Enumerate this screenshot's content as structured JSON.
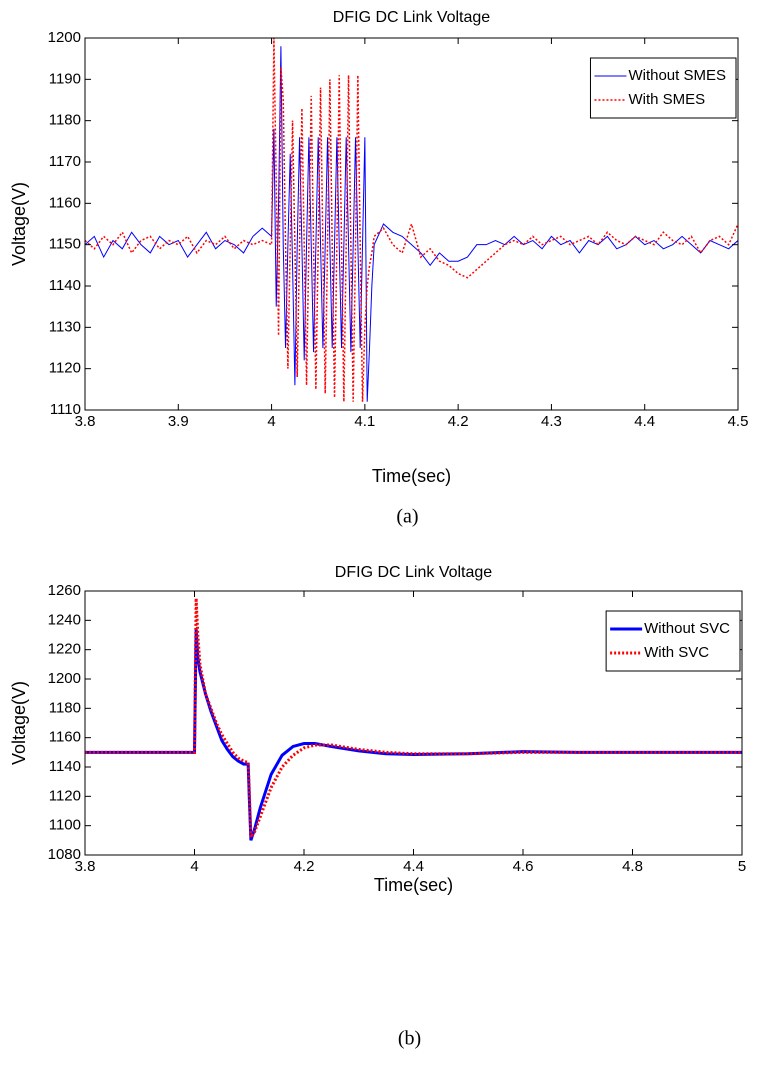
{
  "chart_data": [
    {
      "type": "line",
      "title": "DFIG DC Link Voltage",
      "xlabel": "Time(sec)",
      "ylabel": "Voltage(V)",
      "caption": "(a)",
      "xlim": [
        3.8,
        4.5
      ],
      "ylim": [
        1110,
        1200
      ],
      "xticks": [
        3.8,
        3.9,
        4,
        4.1,
        4.2,
        4.3,
        4.4,
        4.5
      ],
      "yticks": [
        1110,
        1120,
        1130,
        1140,
        1150,
        1160,
        1170,
        1180,
        1190,
        1200
      ],
      "legend": "upper right",
      "grid": false,
      "x": [
        3.8,
        3.81,
        3.82,
        3.83,
        3.84,
        3.85,
        3.86,
        3.87,
        3.88,
        3.89,
        3.9,
        3.91,
        3.92,
        3.93,
        3.94,
        3.95,
        3.96,
        3.97,
        3.98,
        3.99,
        4.0,
        4.0025,
        4.005,
        4.0075,
        4.01,
        4.0125,
        4.015,
        4.0175,
        4.02,
        4.0225,
        4.025,
        4.0275,
        4.03,
        4.0325,
        4.035,
        4.0375,
        4.04,
        4.0425,
        4.045,
        4.0475,
        4.05,
        4.0525,
        4.055,
        4.0575,
        4.06,
        4.0625,
        4.065,
        4.0675,
        4.07,
        4.0725,
        4.075,
        4.0775,
        4.08,
        4.0825,
        4.085,
        4.0875,
        4.09,
        4.0925,
        4.095,
        4.0975,
        4.1,
        4.1025,
        4.105,
        4.1075,
        4.11,
        4.12,
        4.13,
        4.14,
        4.15,
        4.16,
        4.17,
        4.18,
        4.19,
        4.2,
        4.21,
        4.22,
        4.23,
        4.24,
        4.25,
        4.26,
        4.27,
        4.28,
        4.29,
        4.3,
        4.31,
        4.32,
        4.33,
        4.34,
        4.35,
        4.36,
        4.37,
        4.38,
        4.39,
        4.4,
        4.41,
        4.42,
        4.43,
        4.44,
        4.45,
        4.46,
        4.47,
        4.48,
        4.49,
        4.5
      ],
      "series": [
        {
          "name": "Without SMES",
          "color": "#0000ff",
          "linestyle": "solid",
          "linewidth": 1,
          "values": [
            1150,
            1152,
            1147,
            1151,
            1149,
            1153,
            1150,
            1148,
            1152,
            1150,
            1151,
            1147,
            1150,
            1153,
            1149,
            1151,
            1150,
            1148,
            1152,
            1154,
            1152,
            1178,
            1135,
            1160,
            1198,
            1150,
            1125,
            1150,
            1172,
            1145,
            1116,
            1150,
            1176,
            1150,
            1122,
            1150,
            1176,
            1150,
            1124,
            1150,
            1176,
            1150,
            1125,
            1150,
            1176,
            1150,
            1125,
            1150,
            1176,
            1150,
            1125,
            1150,
            1176,
            1150,
            1124,
            1150,
            1176,
            1150,
            1125,
            1150,
            1176,
            1112,
            1125,
            1140,
            1150,
            1155,
            1153,
            1152,
            1150,
            1148,
            1145,
            1148,
            1146,
            1146,
            1147,
            1150,
            1150,
            1151,
            1150,
            1152,
            1150,
            1151,
            1149,
            1152,
            1150,
            1151,
            1148,
            1151,
            1150,
            1152,
            1149,
            1150,
            1152,
            1150,
            1151,
            1149,
            1150,
            1152,
            1150,
            1148,
            1151,
            1150,
            1149,
            1151
          ]
        },
        {
          "name": "With SMES",
          "color": "#ff0000",
          "linestyle": "dotted",
          "linewidth": 1.5,
          "values": [
            1151,
            1149,
            1152,
            1150,
            1153,
            1148,
            1151,
            1152,
            1149,
            1151,
            1150,
            1152,
            1148,
            1151,
            1150,
            1152,
            1149,
            1151,
            1150,
            1151,
            1150,
            1200,
            1165,
            1128,
            1193,
            1185,
            1150,
            1120,
            1150,
            1180,
            1150,
            1118,
            1150,
            1183,
            1150,
            1116,
            1150,
            1186,
            1150,
            1115,
            1150,
            1188,
            1150,
            1114,
            1150,
            1190,
            1150,
            1113,
            1150,
            1191,
            1150,
            1112,
            1150,
            1191,
            1150,
            1112,
            1150,
            1191,
            1150,
            1112,
            1130,
            1140,
            1145,
            1148,
            1152,
            1154,
            1150,
            1148,
            1155,
            1147,
            1149,
            1146,
            1145,
            1143,
            1142,
            1144,
            1146,
            1148,
            1150,
            1151,
            1150,
            1152,
            1150,
            1151,
            1152,
            1150,
            1151,
            1152,
            1150,
            1153,
            1151,
            1150,
            1152,
            1151,
            1150,
            1153,
            1151,
            1150,
            1152,
            1148,
            1151,
            1152,
            1150,
            1155
          ]
        }
      ]
    },
    {
      "type": "line",
      "title": "DFIG DC Link Voltage",
      "xlabel": "Time(sec)",
      "ylabel": "Voltage(V)",
      "caption": "(b)",
      "xlim": [
        3.8,
        5
      ],
      "ylim": [
        1080,
        1260
      ],
      "xticks": [
        3.8,
        4,
        4.2,
        4.4,
        4.6,
        4.8,
        5
      ],
      "yticks": [
        1080,
        1100,
        1120,
        1140,
        1160,
        1180,
        1200,
        1220,
        1240,
        1260
      ],
      "legend": "upper right",
      "grid": false,
      "x": [
        3.8,
        3.99,
        4.0,
        4.003,
        4.006,
        4.01,
        4.02,
        4.03,
        4.04,
        4.05,
        4.06,
        4.07,
        4.08,
        4.09,
        4.098,
        4.1,
        4.103,
        4.11,
        4.12,
        4.14,
        4.16,
        4.18,
        4.2,
        4.22,
        4.25,
        4.3,
        4.35,
        4.4,
        4.5,
        4.6,
        4.7,
        4.8,
        5.0
      ],
      "series": [
        {
          "name": "Without SVC",
          "color": "#0000ff",
          "linestyle": "solid",
          "linewidth": 3,
          "values": [
            1150,
            1150,
            1150,
            1234,
            1215,
            1205,
            1190,
            1178,
            1168,
            1158,
            1152,
            1147,
            1144,
            1142,
            1142,
            1120,
            1090,
            1098,
            1112,
            1135,
            1148,
            1154,
            1156,
            1156,
            1154,
            1151,
            1149,
            1148.5,
            1149,
            1150.5,
            1150,
            1150,
            1150
          ]
        },
        {
          "name": "With SVC",
          "color": "#ff0000",
          "linestyle": "dotted",
          "linewidth": 3,
          "values": [
            1150,
            1150,
            1150,
            1255,
            1230,
            1210,
            1190,
            1180,
            1170,
            1162,
            1156,
            1150,
            1146,
            1144,
            1143,
            1125,
            1092,
            1096,
            1106,
            1126,
            1140,
            1148,
            1153,
            1155,
            1155,
            1152,
            1150,
            1149,
            1149,
            1150,
            1150,
            1150,
            1150
          ]
        }
      ]
    }
  ]
}
